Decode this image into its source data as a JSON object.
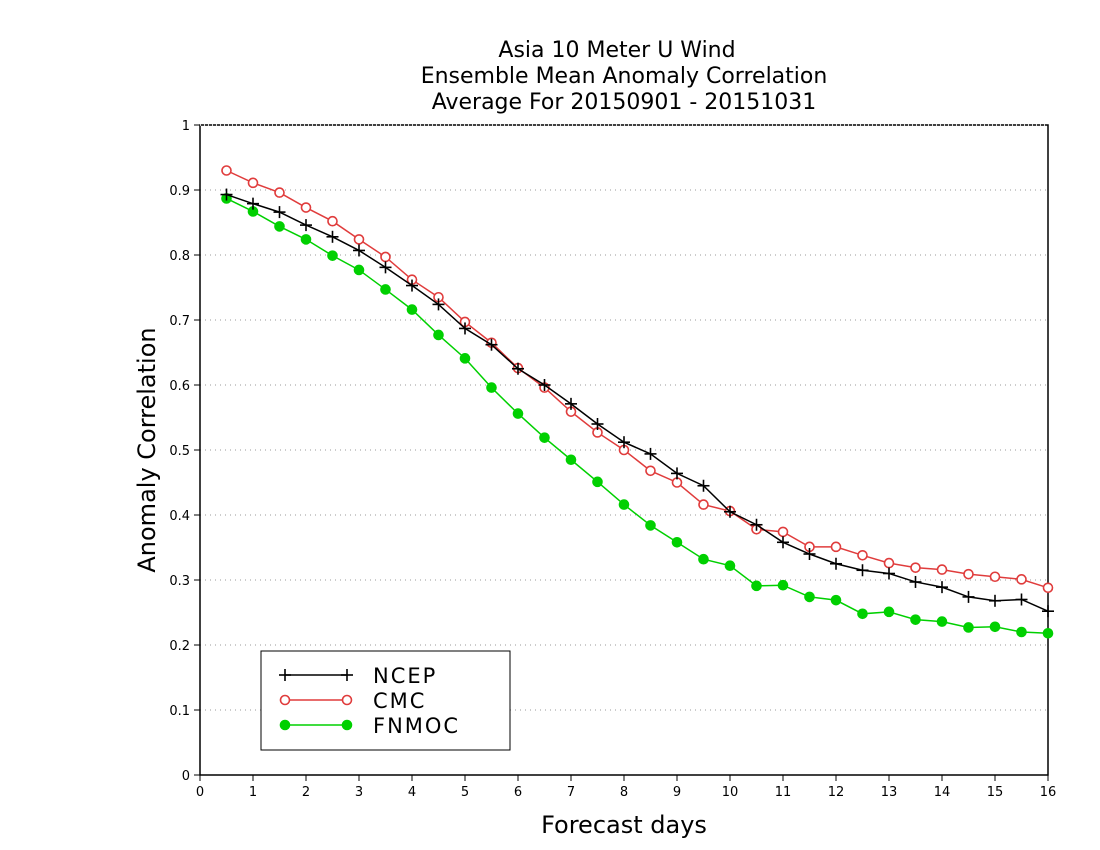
{
  "chart_data": {
    "type": "line",
    "title_lines": [
      "Asia 10 Meter U Wind",
      "Ensemble Mean Anomaly Correlation",
      "Average For 20150901 - 20151031"
    ],
    "xlabel": "Forecast days",
    "ylabel": "Anomaly Correlation",
    "xlim": [
      0,
      16
    ],
    "ylim": [
      0,
      1
    ],
    "xticks": [
      "0",
      "1",
      "2",
      "3",
      "4",
      "5",
      "6",
      "7",
      "8",
      "9",
      "10",
      "11",
      "12",
      "13",
      "14",
      "15",
      "16"
    ],
    "yticks": [
      "0",
      "0.1",
      "0.2",
      "0.3",
      "0.4",
      "0.5",
      "0.6",
      "0.7",
      "0.8",
      "0.9",
      "1"
    ],
    "grid": "horizontal dotted",
    "legend_position": "bottom-left",
    "x": [
      0.5,
      1,
      1.5,
      2,
      2.5,
      3,
      3.5,
      4,
      4.5,
      5,
      5.5,
      6,
      6.5,
      7,
      7.5,
      8,
      8.5,
      9,
      9.5,
      10,
      10.5,
      11,
      11.5,
      12,
      12.5,
      13,
      13.5,
      14,
      14.5,
      15,
      15.5,
      16
    ],
    "series": [
      {
        "name": "NCEP",
        "color": "#000000",
        "marker": "plus",
        "values": [
          0.893,
          0.879,
          0.866,
          0.846,
          0.828,
          0.807,
          0.781,
          0.753,
          0.724,
          0.687,
          0.662,
          0.625,
          0.6,
          0.571,
          0.54,
          0.512,
          0.494,
          0.464,
          0.445,
          0.405,
          0.385,
          0.358,
          0.34,
          0.325,
          0.315,
          0.31,
          0.297,
          0.289,
          0.274,
          0.268,
          0.27,
          0.252
        ]
      },
      {
        "name": "CMC",
        "color": "#e03c3c",
        "marker": "open-circle",
        "values": [
          0.93,
          0.911,
          0.896,
          0.873,
          0.852,
          0.824,
          0.797,
          0.762,
          0.735,
          0.697,
          0.665,
          0.626,
          0.596,
          0.559,
          0.527,
          0.5,
          0.468,
          0.45,
          0.416,
          0.406,
          0.378,
          0.374,
          0.351,
          0.351,
          0.338,
          0.326,
          0.319,
          0.316,
          0.309,
          0.305,
          0.301,
          0.288
        ]
      },
      {
        "name": "FNMOC",
        "color": "#00d000",
        "marker": "filled-circle",
        "values": [
          0.887,
          0.867,
          0.844,
          0.824,
          0.799,
          0.777,
          0.747,
          0.716,
          0.677,
          0.641,
          0.596,
          0.556,
          0.519,
          0.485,
          0.451,
          0.416,
          0.384,
          0.358,
          0.332,
          0.322,
          0.291,
          0.292,
          0.274,
          0.269,
          0.248,
          0.251,
          0.239,
          0.236,
          0.227,
          0.228,
          0.22,
          0.218
        ]
      }
    ]
  }
}
